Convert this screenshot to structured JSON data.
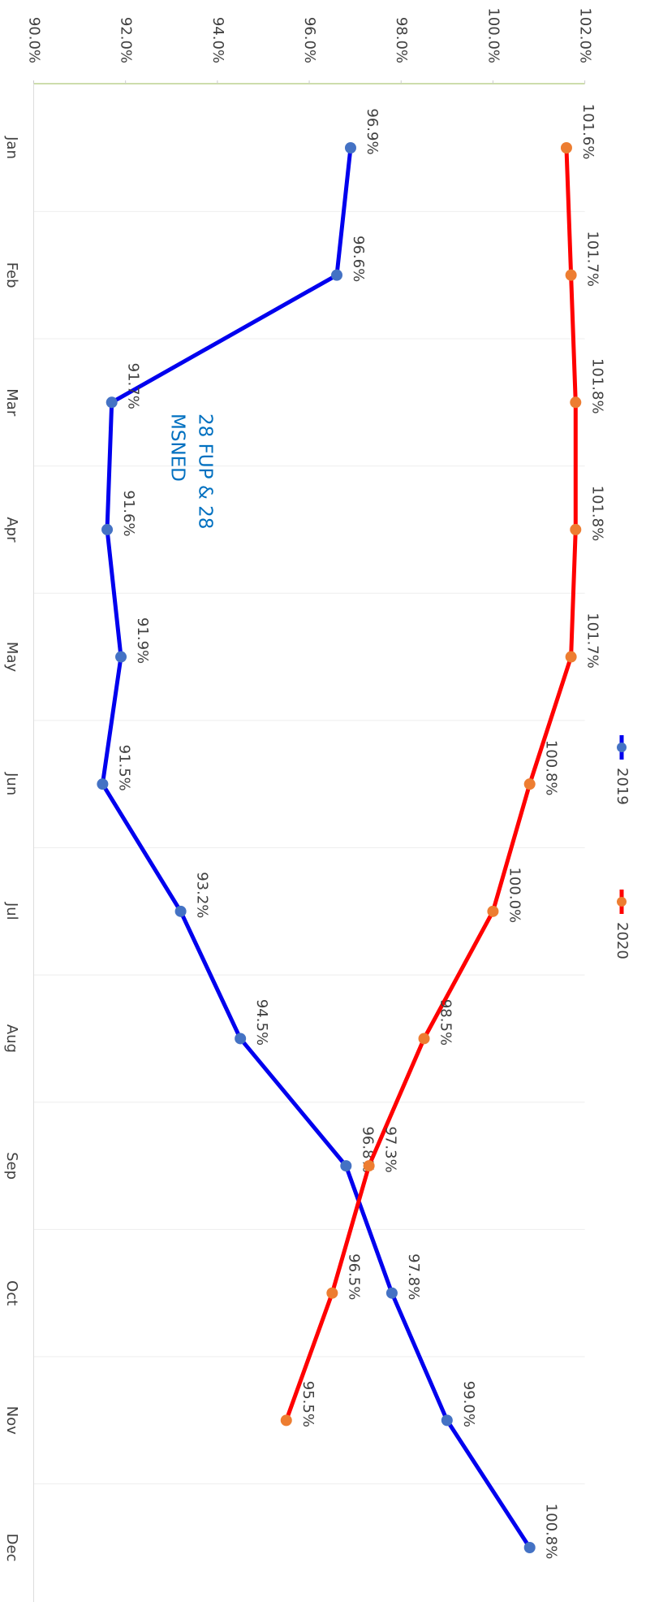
{
  "chart_data": {
    "type": "line",
    "categories": [
      "Jan",
      "Feb",
      "Mar",
      "Apr",
      "May",
      "Jun",
      "Jul",
      "Aug",
      "Sep",
      "Oct",
      "Nov",
      "Dec"
    ],
    "series": [
      {
        "name": "2019",
        "color": "#0000ee",
        "marker_color": "#4472c4",
        "values": [
          96.9,
          96.6,
          91.7,
          91.6,
          91.9,
          91.5,
          93.2,
          94.5,
          96.8,
          97.8,
          99.0,
          100.8
        ],
        "value_labels": [
          "96.9%",
          "96.6%",
          "91.7%",
          "91.6%",
          "91.9%",
          "91.5%",
          "93.2%",
          "94.5%",
          "96.8%",
          "97.8%",
          "99.0%",
          "100.8%"
        ]
      },
      {
        "name": "2020",
        "color": "#ff0000",
        "marker_color": "#ed7d31",
        "values": [
          101.6,
          101.7,
          101.8,
          101.8,
          101.7,
          100.8,
          100.0,
          98.5,
          97.3,
          96.5,
          95.5,
          null
        ],
        "value_labels": [
          "101.6%",
          "101.7%",
          "101.8%",
          "101.8%",
          "101.7%",
          "100.8%",
          "100.0%",
          "98.5%",
          "97.3%",
          "96.5%",
          "95.5%",
          null
        ]
      }
    ],
    "ylim": [
      90,
      102
    ],
    "yticks": [
      {
        "value": 90,
        "label": "90.0%"
      },
      {
        "value": 92,
        "label": "92.0%"
      },
      {
        "value": 94,
        "label": "94.0%"
      },
      {
        "value": 96,
        "label": "96.0%"
      },
      {
        "value": 98,
        "label": "98.0%"
      },
      {
        "value": 100,
        "label": "100.0%"
      },
      {
        "value": 102,
        "label": "102.0%"
      }
    ],
    "annotation": [
      "28 FUP & 28",
      "MSNED"
    ],
    "legend": "top"
  }
}
